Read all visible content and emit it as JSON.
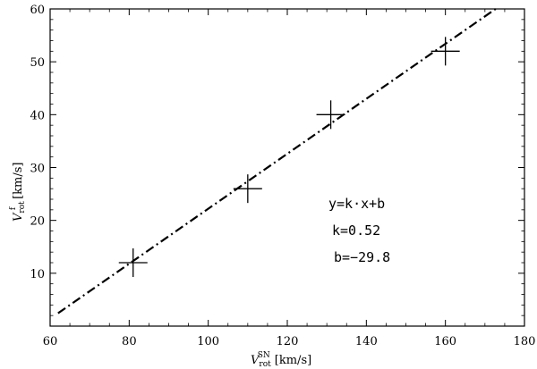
{
  "chart_data": {
    "type": "scatter",
    "x": [
      81,
      110,
      131,
      160
    ],
    "y": [
      12,
      26,
      40,
      52
    ],
    "xlim": [
      60,
      180
    ],
    "ylim": [
      0,
      60
    ],
    "xticks": [
      60,
      80,
      100,
      120,
      140,
      160,
      180
    ],
    "yticks": [
      10,
      20,
      30,
      40,
      50,
      60
    ],
    "xlabel": {
      "main": "V",
      "sub": "rot",
      "sup": "SN",
      "unit": "[km/s]"
    },
    "ylabel": {
      "main": "V",
      "sub": "rot",
      "sup": "f",
      "unit": "[km/s]"
    },
    "fit": {
      "k": 0.52,
      "b": -29.8,
      "style": "dash-dot"
    },
    "annotations": [
      "y=k·x+b",
      "k=0.52",
      "b=−29.8"
    ],
    "marker": "cross",
    "grid": false
  }
}
